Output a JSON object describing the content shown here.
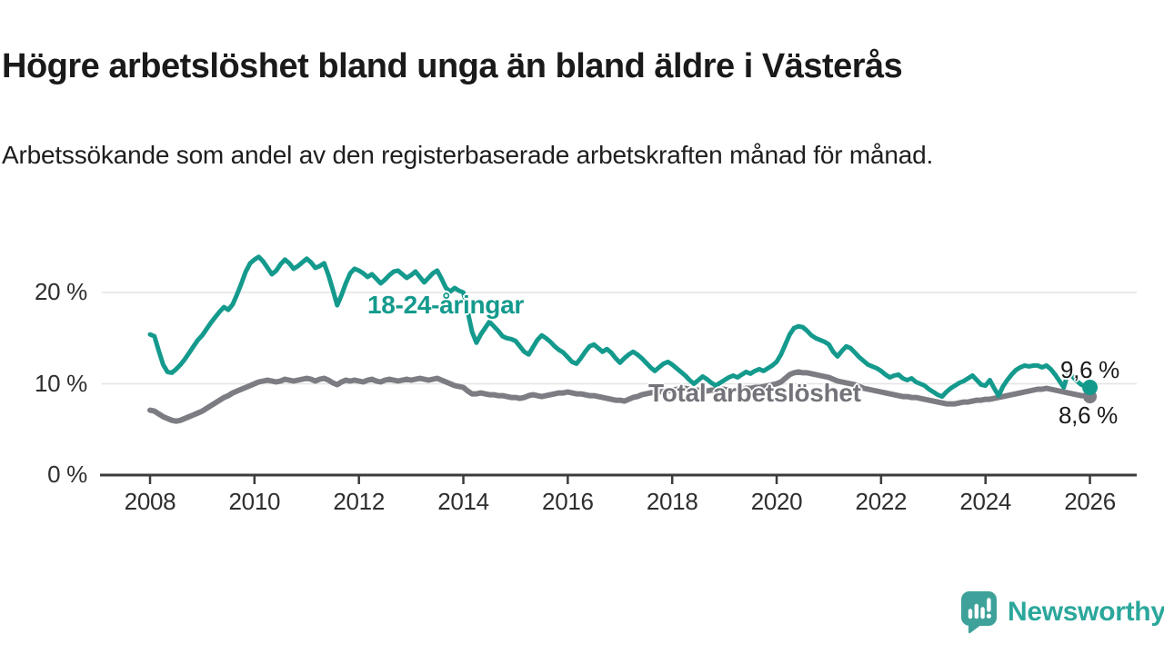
{
  "header": {
    "title": "Högre arbetslöshet bland unga än bland äldre i Västerås",
    "subtitle": "Arbetssökande som andel av den registerbaserade arbetskraften månad för månad."
  },
  "footer": {
    "brand": "Newsworthy",
    "brand_color": "#2ba79b",
    "logo_icon": "newsworthy-speech-bubble-bar-chart"
  },
  "chart_data": {
    "type": "line",
    "title": "Högre arbetslöshet bland unga än bland äldre i Västerås",
    "subtitle": "Arbetssökande som andel av den registerbaserade arbetskraften månad för månad.",
    "xlabel": "",
    "ylabel": "",
    "x_unit": "monthly, Jan 2008 – Jan 2026",
    "x_start_year": 2008,
    "x_step_months": 1,
    "x_ticks": [
      2008,
      2010,
      2012,
      2014,
      2016,
      2018,
      2020,
      2022,
      2024,
      2026
    ],
    "y_ticks": [
      {
        "value": 0,
        "label": "0 %"
      },
      {
        "value": 10,
        "label": "10 %"
      },
      {
        "value": 20,
        "label": "20 %"
      }
    ],
    "ylim": [
      0,
      25.2
    ],
    "xlim": [
      2007.9,
      2026.9
    ],
    "grid": "horizontal",
    "grid_color": "#e4e4e4",
    "axis_color": "#3b3b3b",
    "legend": "inline-labels",
    "series": [
      {
        "name": "18-24-åringar",
        "color": "#149a8d",
        "line_width": 5,
        "end_value": 9.6,
        "end_label": "9,6 %",
        "end_dot": true,
        "values": [
          15.4,
          15.2,
          13.6,
          12.1,
          11.3,
          11.2,
          11.6,
          12.1,
          12.7,
          13.4,
          14.1,
          14.8,
          15.3,
          16.0,
          16.7,
          17.3,
          17.9,
          18.4,
          18.1,
          18.7,
          19.8,
          21.0,
          22.3,
          23.2,
          23.6,
          23.9,
          23.4,
          22.7,
          22.0,
          22.4,
          23.1,
          23.6,
          23.2,
          22.6,
          22.9,
          23.3,
          23.7,
          23.3,
          22.7,
          22.9,
          23.2,
          21.9,
          20.3,
          18.6,
          19.7,
          21.0,
          22.1,
          22.6,
          22.4,
          22.1,
          21.7,
          22.0,
          21.5,
          21.0,
          21.4,
          21.9,
          22.3,
          22.4,
          22.0,
          21.6,
          21.9,
          22.3,
          21.7,
          21.1,
          21.6,
          22.1,
          22.4,
          21.5,
          20.5,
          20.1,
          20.5,
          20.2,
          20.0,
          17.9,
          15.7,
          14.5,
          15.4,
          16.1,
          16.8,
          16.3,
          15.8,
          15.2,
          15.0,
          14.9,
          14.7,
          14.1,
          13.5,
          13.2,
          14.0,
          14.8,
          15.3,
          15.0,
          14.6,
          14.1,
          13.7,
          13.4,
          12.9,
          12.4,
          12.2,
          12.8,
          13.5,
          14.1,
          14.3,
          13.9,
          13.5,
          13.8,
          13.4,
          12.8,
          12.3,
          12.8,
          13.2,
          13.5,
          13.2,
          12.8,
          12.3,
          11.8,
          11.4,
          11.8,
          12.2,
          12.4,
          12.1,
          11.7,
          11.3,
          10.9,
          10.4,
          10.0,
          10.4,
          10.8,
          10.5,
          10.1,
          9.8,
          10.1,
          10.4,
          10.7,
          10.9,
          10.7,
          11.0,
          11.3,
          11.1,
          11.4,
          11.6,
          11.4,
          11.7,
          12.0,
          12.4,
          13.2,
          14.3,
          15.4,
          16.1,
          16.3,
          16.2,
          15.8,
          15.3,
          15.0,
          14.8,
          14.6,
          14.3,
          13.5,
          13.0,
          13.6,
          14.1,
          13.9,
          13.4,
          12.9,
          12.5,
          12.1,
          11.9,
          11.7,
          11.4,
          11.0,
          10.7,
          10.9,
          11.0,
          10.6,
          10.4,
          10.6,
          10.2,
          10.0,
          9.8,
          9.4,
          9.1,
          8.8,
          8.6,
          9.1,
          9.5,
          9.8,
          10.1,
          10.3,
          10.6,
          10.9,
          10.4,
          9.9,
          9.8,
          10.4,
          9.5,
          8.7,
          9.7,
          10.4,
          11.0,
          11.5,
          11.8,
          12.0,
          11.9,
          12.0,
          12.0,
          11.8,
          12.0,
          11.6,
          11.0,
          10.3,
          9.6,
          11.2,
          10.8,
          10.3,
          9.9,
          9.7,
          9.6
        ]
      },
      {
        "name": "Total arbetslöshet",
        "color": "#7c7c83",
        "line_width": 6,
        "end_value": 8.6,
        "end_label": "8,6 %",
        "end_dot": true,
        "values": [
          7.1,
          7.0,
          6.7,
          6.4,
          6.2,
          6.0,
          5.9,
          6.0,
          6.2,
          6.4,
          6.6,
          6.8,
          7.0,
          7.3,
          7.6,
          7.9,
          8.2,
          8.5,
          8.7,
          9.0,
          9.2,
          9.4,
          9.6,
          9.8,
          10.0,
          10.2,
          10.3,
          10.4,
          10.3,
          10.2,
          10.3,
          10.5,
          10.4,
          10.3,
          10.4,
          10.5,
          10.6,
          10.5,
          10.3,
          10.5,
          10.6,
          10.4,
          10.1,
          9.9,
          10.2,
          10.4,
          10.3,
          10.4,
          10.3,
          10.2,
          10.4,
          10.5,
          10.3,
          10.2,
          10.4,
          10.5,
          10.4,
          10.3,
          10.4,
          10.5,
          10.4,
          10.5,
          10.6,
          10.5,
          10.4,
          10.5,
          10.6,
          10.4,
          10.2,
          10.0,
          9.8,
          9.7,
          9.6,
          9.2,
          8.9,
          8.9,
          9.0,
          8.9,
          8.8,
          8.8,
          8.7,
          8.7,
          8.6,
          8.5,
          8.5,
          8.4,
          8.5,
          8.7,
          8.8,
          8.7,
          8.6,
          8.7,
          8.8,
          8.9,
          9.0,
          9.0,
          9.1,
          9.0,
          8.9,
          8.9,
          8.8,
          8.7,
          8.7,
          8.6,
          8.5,
          8.4,
          8.3,
          8.2,
          8.2,
          8.1,
          8.3,
          8.5,
          8.6,
          8.8,
          8.9,
          9.0,
          9.1,
          9.1,
          9.2,
          9.2,
          9.3,
          9.4,
          9.4,
          9.5,
          9.4,
          9.3,
          9.3,
          9.2,
          9.2,
          9.3,
          9.3,
          9.4,
          9.4,
          9.3,
          9.3,
          9.4,
          9.4,
          9.5,
          9.5,
          9.6,
          9.6,
          9.7,
          9.8,
          9.9,
          10.0,
          10.2,
          10.6,
          11.0,
          11.2,
          11.3,
          11.2,
          11.2,
          11.1,
          11.0,
          10.9,
          10.8,
          10.7,
          10.5,
          10.3,
          10.2,
          10.1,
          10.0,
          9.9,
          9.7,
          9.5,
          9.4,
          9.3,
          9.2,
          9.1,
          9.0,
          8.9,
          8.8,
          8.7,
          8.6,
          8.6,
          8.5,
          8.5,
          8.4,
          8.3,
          8.2,
          8.1,
          8.0,
          7.9,
          7.8,
          7.8,
          7.8,
          7.9,
          8.0,
          8.0,
          8.1,
          8.2,
          8.2,
          8.3,
          8.3,
          8.4,
          8.5,
          8.6,
          8.7,
          8.8,
          8.9,
          9.0,
          9.1,
          9.2,
          9.3,
          9.4,
          9.4,
          9.5,
          9.4,
          9.3,
          9.2,
          9.1,
          9.0,
          8.9,
          8.8,
          8.7,
          8.7,
          8.6
        ]
      }
    ]
  }
}
